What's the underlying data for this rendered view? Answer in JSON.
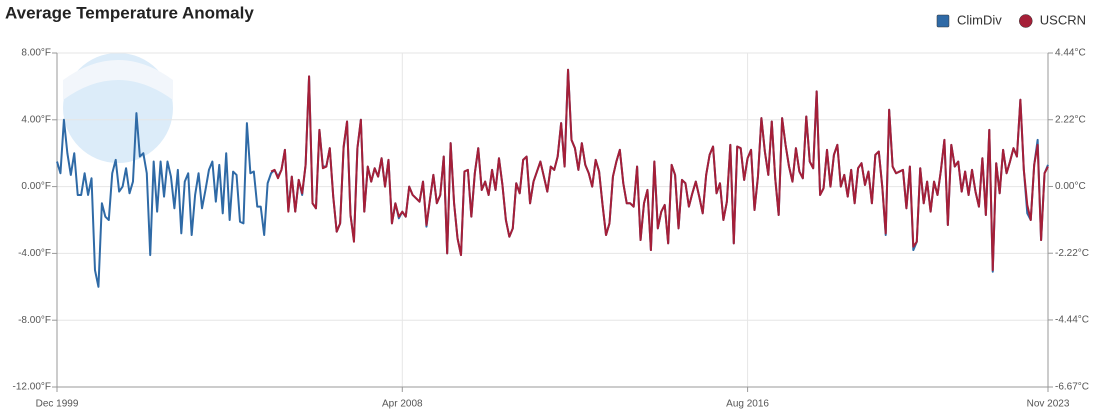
{
  "chart_data": {
    "type": "line",
    "title": "Average Temperature Anomaly",
    "x": [
      "1999-12",
      "2000-01",
      "2000-02",
      "2000-03",
      "2000-04",
      "2000-05",
      "2000-06",
      "2000-07",
      "2000-08",
      "2000-09",
      "2000-10",
      "2000-11",
      "2000-12",
      "2001-01",
      "2001-02",
      "2001-03",
      "2001-04",
      "2001-05",
      "2001-06",
      "2001-07",
      "2001-08",
      "2001-09",
      "2001-10",
      "2001-11",
      "2001-12",
      "2002-01",
      "2002-02",
      "2002-03",
      "2002-04",
      "2002-05",
      "2002-06",
      "2002-07",
      "2002-08",
      "2002-09",
      "2002-10",
      "2002-11",
      "2002-12",
      "2003-01",
      "2003-02",
      "2003-03",
      "2003-04",
      "2003-05",
      "2003-06",
      "2003-07",
      "2003-08",
      "2003-09",
      "2003-10",
      "2003-11",
      "2003-12",
      "2004-01",
      "2004-02",
      "2004-03",
      "2004-04",
      "2004-05",
      "2004-06",
      "2004-07",
      "2004-08",
      "2004-09",
      "2004-10",
      "2004-11",
      "2004-12",
      "2005-01",
      "2005-02",
      "2005-03",
      "2005-04",
      "2005-05",
      "2005-06",
      "2005-07",
      "2005-08",
      "2005-09",
      "2005-10",
      "2005-11",
      "2005-12",
      "2006-01",
      "2006-02",
      "2006-03",
      "2006-04",
      "2006-05",
      "2006-06",
      "2006-07",
      "2006-08",
      "2006-09",
      "2006-10",
      "2006-11",
      "2006-12",
      "2007-01",
      "2007-02",
      "2007-03",
      "2007-04",
      "2007-05",
      "2007-06",
      "2007-07",
      "2007-08",
      "2007-09",
      "2007-10",
      "2007-11",
      "2007-12",
      "2008-01",
      "2008-02",
      "2008-03",
      "2008-04",
      "2008-05",
      "2008-06",
      "2008-07",
      "2008-08",
      "2008-09",
      "2008-10",
      "2008-11",
      "2008-12",
      "2009-01",
      "2009-02",
      "2009-03",
      "2009-04",
      "2009-05",
      "2009-06",
      "2009-07",
      "2009-08",
      "2009-09",
      "2009-10",
      "2009-11",
      "2009-12",
      "2010-01",
      "2010-02",
      "2010-03",
      "2010-04",
      "2010-05",
      "2010-06",
      "2010-07",
      "2010-08",
      "2010-09",
      "2010-10",
      "2010-11",
      "2010-12",
      "2011-01",
      "2011-02",
      "2011-03",
      "2011-04",
      "2011-05",
      "2011-06",
      "2011-07",
      "2011-08",
      "2011-09",
      "2011-10",
      "2011-11",
      "2011-12",
      "2012-01",
      "2012-02",
      "2012-03",
      "2012-04",
      "2012-05",
      "2012-06",
      "2012-07",
      "2012-08",
      "2012-09",
      "2012-10",
      "2012-11",
      "2012-12",
      "2013-01",
      "2013-02",
      "2013-03",
      "2013-04",
      "2013-05",
      "2013-06",
      "2013-07",
      "2013-08",
      "2013-09",
      "2013-10",
      "2013-11",
      "2013-12",
      "2014-01",
      "2014-02",
      "2014-03",
      "2014-04",
      "2014-05",
      "2014-06",
      "2014-07",
      "2014-08",
      "2014-09",
      "2014-10",
      "2014-11",
      "2014-12",
      "2015-01",
      "2015-02",
      "2015-03",
      "2015-04",
      "2015-05",
      "2015-06",
      "2015-07",
      "2015-08",
      "2015-09",
      "2015-10",
      "2015-11",
      "2015-12",
      "2016-01",
      "2016-02",
      "2016-03",
      "2016-04",
      "2016-05",
      "2016-06",
      "2016-07",
      "2016-08",
      "2016-09",
      "2016-10",
      "2016-11",
      "2016-12",
      "2017-01",
      "2017-02",
      "2017-03",
      "2017-04",
      "2017-05",
      "2017-06",
      "2017-07",
      "2017-08",
      "2017-09",
      "2017-10",
      "2017-11",
      "2017-12",
      "2018-01",
      "2018-02",
      "2018-03",
      "2018-04",
      "2018-05",
      "2018-06",
      "2018-07",
      "2018-08",
      "2018-09",
      "2018-10",
      "2018-11",
      "2018-12",
      "2019-01",
      "2019-02",
      "2019-03",
      "2019-04",
      "2019-05",
      "2019-06",
      "2019-07",
      "2019-08",
      "2019-09",
      "2019-10",
      "2019-11",
      "2019-12",
      "2020-01",
      "2020-02",
      "2020-03",
      "2020-04",
      "2020-05",
      "2020-06",
      "2020-07",
      "2020-08",
      "2020-09",
      "2020-10",
      "2020-11",
      "2020-12",
      "2021-01",
      "2021-02",
      "2021-03",
      "2021-04",
      "2021-05",
      "2021-06",
      "2021-07",
      "2021-08",
      "2021-09",
      "2021-10",
      "2021-11",
      "2021-12",
      "2022-01",
      "2022-02",
      "2022-03",
      "2022-04",
      "2022-05",
      "2022-06",
      "2022-07",
      "2022-08",
      "2022-09",
      "2022-10",
      "2022-11",
      "2022-12",
      "2023-01",
      "2023-02",
      "2023-03",
      "2023-04",
      "2023-05",
      "2023-06",
      "2023-07",
      "2023-08",
      "2023-09",
      "2023-10",
      "2023-11"
    ],
    "series": [
      {
        "name": "ClimDiv",
        "color": "#2f6aa6",
        "values": [
          1.5,
          0.8,
          4.0,
          2.0,
          0.7,
          2.0,
          -0.5,
          -0.5,
          0.8,
          -0.5,
          0.5,
          -5.0,
          -6.0,
          -1.0,
          -1.8,
          -2.0,
          0.8,
          1.6,
          -0.3,
          0.0,
          1.1,
          -0.4,
          0.3,
          4.4,
          1.8,
          2.0,
          0.8,
          -4.1,
          1.5,
          -1.5,
          1.5,
          -0.6,
          1.5,
          0.6,
          -1.3,
          1.0,
          -2.8,
          0.3,
          0.8,
          -2.9,
          -0.5,
          0.8,
          -1.3,
          -0.2,
          1.0,
          1.5,
          -0.9,
          1.3,
          -1.6,
          2.0,
          -2.0,
          0.9,
          0.7,
          -2.1,
          -2.2,
          3.8,
          0.8,
          0.9,
          -1.2,
          -1.2,
          -2.9,
          0.2,
          0.8,
          1.0,
          0.6,
          1.0,
          2.2,
          -1.4,
          0.6,
          -1.5,
          0.4,
          -0.5,
          1.3,
          6.6,
          -1.0,
          -1.3,
          3.4,
          1.2,
          1.2,
          2.3,
          -0.6,
          -2.7,
          -2.2,
          2.3,
          3.9,
          -1.7,
          -3.2,
          2.3,
          4.0,
          -1.5,
          1.2,
          0.3,
          1.1,
          0.6,
          1.7,
          0.0,
          1.6,
          -2.2,
          -1.0,
          -1.9,
          -1.5,
          -1.8,
          0.0,
          -0.5,
          -0.7,
          -0.9,
          0.3,
          -2.4,
          -0.8,
          0.7,
          -1.0,
          -0.5,
          1.8,
          -4.0,
          2.6,
          -1.0,
          -3.1,
          -4.1,
          0.9,
          1.0,
          -1.8,
          0.8,
          2.3,
          -0.2,
          0.3,
          -0.5,
          1.0,
          -0.2,
          1.7,
          0.1,
          -2.0,
          -3.0,
          -2.5,
          0.2,
          -0.4,
          1.6,
          1.8,
          -1.0,
          0.3,
          0.9,
          1.5,
          0.6,
          -0.3,
          1.2,
          1.0,
          1.8,
          3.8,
          1.2,
          7.0,
          2.8,
          2.3,
          1.0,
          2.6,
          1.3,
          0.8,
          0.0,
          1.6,
          0.9,
          -1.1,
          -2.9,
          -2.2,
          0.6,
          1.5,
          2.2,
          0.2,
          -1.0,
          -1.0,
          -1.2,
          1.2,
          -3.2,
          -1.0,
          -0.2,
          -3.8,
          1.5,
          -2.5,
          -1.5,
          -1.1,
          -3.4,
          1.3,
          0.7,
          -2.5,
          0.4,
          0.2,
          -1.2,
          -0.4,
          0.3,
          -0.6,
          -1.6,
          0.7,
          1.9,
          2.4,
          -0.4,
          0.2,
          -2.0,
          -0.9,
          2.5,
          -3.4,
          2.4,
          2.3,
          0.4,
          1.7,
          2.2,
          -1.4,
          0.6,
          4.1,
          2.1,
          0.7,
          3.9,
          0.5,
          -1.7,
          4.1,
          2.5,
          1.2,
          0.3,
          2.3,
          0.9,
          0.5,
          4.2,
          1.5,
          1.1,
          5.7,
          -0.5,
          -0.1,
          2.2,
          0.0,
          1.9,
          2.5,
          0.0,
          0.7,
          -0.6,
          1.0,
          -1.0,
          1.1,
          1.4,
          0.1,
          0.9,
          -1.0,
          1.9,
          2.1,
          0.0,
          -2.9,
          4.6,
          1.2,
          0.8,
          0.9,
          1.0,
          -1.3,
          1.2,
          -3.8,
          -3.3,
          1.1,
          -1.0,
          0.3,
          -1.5,
          0.3,
          -0.5,
          1.0,
          2.8,
          -2.3,
          2.5,
          1.2,
          1.5,
          -0.3,
          0.9,
          -0.5,
          1.0,
          -0.3,
          -1.2,
          1.7,
          -1.7,
          3.4,
          -5.1,
          1.4,
          -0.4,
          2.2,
          0.8,
          1.5,
          2.3,
          1.8,
          5.2,
          1.0,
          -1.6,
          -2.0,
          1.3,
          2.8,
          -3.2,
          0.8,
          1.3
        ]
      },
      {
        "name": "USCRN",
        "color": "#a51f38",
        "values": [
          null,
          null,
          null,
          null,
          null,
          null,
          null,
          null,
          null,
          null,
          null,
          null,
          null,
          null,
          null,
          null,
          null,
          null,
          null,
          null,
          null,
          null,
          null,
          null,
          null,
          null,
          null,
          null,
          null,
          null,
          null,
          null,
          null,
          null,
          null,
          null,
          null,
          null,
          null,
          null,
          null,
          null,
          null,
          null,
          null,
          null,
          null,
          null,
          null,
          null,
          null,
          null,
          null,
          null,
          null,
          null,
          null,
          null,
          null,
          null,
          null,
          null,
          0.9,
          1.0,
          0.5,
          1.0,
          2.2,
          -1.5,
          0.6,
          -1.5,
          0.4,
          -0.4,
          1.3,
          6.6,
          -1.0,
          -1.3,
          3.4,
          1.1,
          1.2,
          2.3,
          -0.6,
          -2.7,
          -2.2,
          2.4,
          3.9,
          -1.7,
          -3.3,
          2.3,
          4.0,
          -1.5,
          1.2,
          0.3,
          1.1,
          0.6,
          1.7,
          0.0,
          1.6,
          -2.2,
          -1.0,
          -1.8,
          -1.5,
          -1.8,
          0.0,
          -0.5,
          -0.7,
          -0.9,
          0.3,
          -2.3,
          -0.8,
          0.7,
          -1.0,
          -0.5,
          1.8,
          -4.0,
          2.6,
          -1.0,
          -3.1,
          -4.1,
          0.9,
          1.0,
          -1.8,
          0.8,
          2.3,
          -0.2,
          0.3,
          -0.5,
          1.0,
          -0.2,
          1.7,
          0.1,
          -2.0,
          -3.0,
          -2.5,
          0.2,
          -0.4,
          1.6,
          1.8,
          -1.0,
          0.3,
          0.9,
          1.5,
          0.6,
          -0.3,
          1.2,
          1.0,
          1.8,
          3.8,
          1.2,
          7.0,
          2.8,
          2.3,
          1.0,
          2.6,
          1.3,
          0.8,
          0.0,
          1.6,
          0.9,
          -1.1,
          -2.9,
          -2.2,
          0.6,
          1.5,
          2.2,
          0.2,
          -1.0,
          -1.0,
          -1.2,
          1.2,
          -3.2,
          -1.0,
          -0.2,
          -3.8,
          1.5,
          -2.5,
          -1.5,
          -1.1,
          -3.4,
          1.3,
          0.7,
          -2.5,
          0.4,
          0.2,
          -1.2,
          -0.4,
          0.3,
          -0.6,
          -1.6,
          0.7,
          1.9,
          2.4,
          -0.4,
          0.2,
          -2.0,
          -0.9,
          2.5,
          -3.4,
          2.4,
          2.3,
          0.4,
          1.7,
          2.2,
          -1.4,
          0.6,
          4.1,
          2.1,
          0.7,
          3.9,
          0.5,
          -1.7,
          4.1,
          2.5,
          1.2,
          0.3,
          2.3,
          0.9,
          0.5,
          4.2,
          1.5,
          1.1,
          5.7,
          -0.5,
          -0.1,
          2.2,
          0.0,
          1.9,
          2.5,
          0.0,
          0.7,
          -0.6,
          1.0,
          -1.0,
          1.1,
          1.4,
          0.1,
          0.9,
          -1.0,
          1.9,
          2.1,
          0.0,
          -2.8,
          4.6,
          1.2,
          0.8,
          0.9,
          1.0,
          -1.3,
          1.2,
          -3.6,
          -3.3,
          1.1,
          -1.0,
          0.3,
          -1.5,
          0.3,
          -0.5,
          1.0,
          2.8,
          -2.3,
          2.5,
          1.2,
          1.5,
          -0.3,
          0.9,
          -0.5,
          1.0,
          -0.3,
          -1.2,
          1.7,
          -1.7,
          3.4,
          -5.0,
          1.4,
          -0.4,
          2.2,
          0.8,
          1.5,
          2.3,
          1.8,
          5.2,
          1.0,
          -1.1,
          -2.0,
          1.3,
          2.5,
          -3.2,
          0.8,
          1.2
        ]
      }
    ],
    "xlim": [
      "1999-12",
      "2023-11"
    ],
    "xticks": [
      {
        "value": "1999-12",
        "label": "Dec 1999"
      },
      {
        "value": "2008-04",
        "label": "Apr 2008"
      },
      {
        "value": "2016-08",
        "label": "Aug 2016"
      },
      {
        "value": "2023-11",
        "label": "Nov 2023"
      }
    ],
    "ylim": [
      -12,
      8
    ],
    "yticks": [
      {
        "value": -12,
        "label": "-12.00°F"
      },
      {
        "value": -8,
        "label": "-8.00°F"
      },
      {
        "value": -4,
        "label": "-4.00°F"
      },
      {
        "value": 0,
        "label": "0.00°F"
      },
      {
        "value": 4,
        "label": "4.00°F"
      },
      {
        "value": 8,
        "label": "8.00°F"
      }
    ],
    "y2lim": [
      -6.67,
      4.44
    ],
    "y2ticks": [
      {
        "value": -6.67,
        "label": "-6.67°C"
      },
      {
        "value": -4.44,
        "label": "-4.44°C"
      },
      {
        "value": -2.22,
        "label": "-2.22°C"
      },
      {
        "value": 0,
        "label": "0.00°C"
      },
      {
        "value": 2.22,
        "label": "2.22°C"
      },
      {
        "value": 4.44,
        "label": "4.44°C"
      }
    ],
    "grid": true,
    "legend_position": "top-right"
  }
}
